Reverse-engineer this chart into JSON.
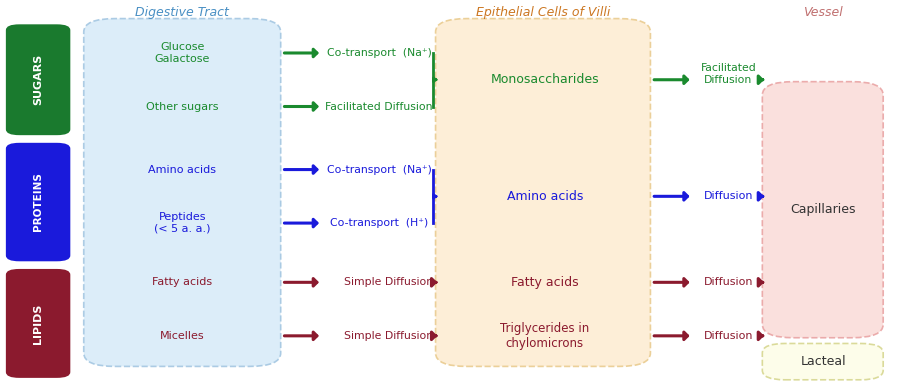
{
  "title_digestive": "Digestive Tract",
  "title_epithelial": "Epithelial Cells of Villi",
  "title_vessel": "Vessel",
  "sugars_label": "SUGARS",
  "proteins_label": "PROTEINS",
  "lipids_label": "LIPIDS",
  "sugars_color": "#1a7a2e",
  "proteins_color": "#1a1adb",
  "lipids_color": "#8b1a2e",
  "green": "#1a8a2e",
  "blue": "#1a1adb",
  "red": "#8b1a2e",
  "digestive_bg": "#d6eaf8",
  "epithelial_bg": "#fdebd0",
  "capillaries_bg": "#fadbd8",
  "lacteal_bg": "#fdfde7",
  "bg_color": "#ffffff",
  "digestive_ec": "#a0c4e0",
  "epithelial_ec": "#e8c98a",
  "capillaries_ec": "#e8a0a0",
  "lacteal_ec": "#d4d48a",
  "header_digestive_color": "#4a90c4",
  "header_epithelial_color": "#cc7722",
  "header_vessel_color": "#c07070"
}
